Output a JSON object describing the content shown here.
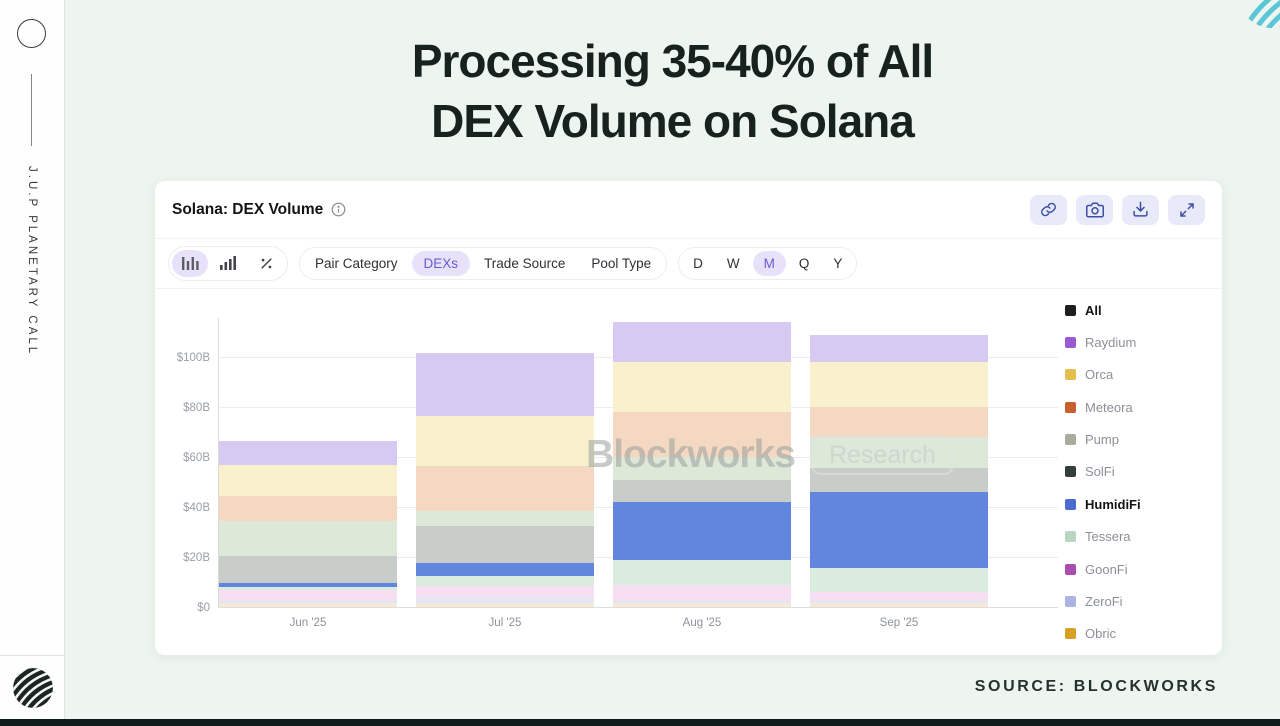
{
  "slide": {
    "title_line1": "Processing 35-40% of All",
    "title_line2": "DEX Volume on Solana",
    "sidebar_text": "J.U.P PLANETARY CALL",
    "source_label": "SOURCE: BLOCKWORKS"
  },
  "watermark": {
    "brand": "Blockworks",
    "suffix": "Research"
  },
  "card": {
    "title": "Solana: DEX Volume",
    "action_icons": [
      "link-icon",
      "camera-icon",
      "save-image-icon",
      "expand-icon"
    ],
    "filters": {
      "chart_types": [
        "bar-chart-icon",
        "ascending-bars-icon",
        "percent-icon"
      ],
      "active_chart_type": 0,
      "categories": [
        "Pair Category",
        "DEXs",
        "Trade Source",
        "Pool Type"
      ],
      "active_category": "DEXs",
      "periods": [
        "D",
        "W",
        "M",
        "Q",
        "Y"
      ],
      "active_period": "M"
    }
  },
  "chart_data": {
    "type": "bar",
    "stacked": true,
    "title": "Solana: DEX Volume",
    "unit": "USD billions",
    "categories": [
      "Jun '25",
      "Jul '25",
      "Aug '25",
      "Sep '25"
    ],
    "totals_usd_b": [
      66.5,
      101.5,
      114,
      109
    ],
    "ylim": [
      0,
      116
    ],
    "yticks": [
      0,
      20,
      40,
      60,
      80,
      100
    ],
    "ytick_labels": [
      "$0",
      "$20B",
      "$40B",
      "$60B",
      "$80B",
      "$100B"
    ],
    "grid": true,
    "legend_position": "right",
    "series_bottom_to_top": [
      {
        "name": "Obric",
        "fill": "#f6ead6",
        "values": [
          1.5,
          1.5,
          1.5,
          1.5
        ]
      },
      {
        "name": "ZeroFi",
        "fill": "#e4e6f6",
        "values": [
          1.5,
          2.5,
          1.5,
          1.5
        ]
      },
      {
        "name": "GoonFi",
        "fill": "#f6dff0",
        "values": [
          4,
          4.5,
          6,
          3
        ]
      },
      {
        "name": "Tessera",
        "fill": "#daecdf",
        "values": [
          1,
          4,
          10,
          9.5
        ]
      },
      {
        "name": "HumidiFi",
        "fill": "#6286dd",
        "values": [
          1.5,
          5,
          23,
          30.5
        ]
      },
      {
        "name": "SolFi",
        "fill": "#c9cdc9",
        "values": [
          11,
          15,
          9,
          9.5
        ]
      },
      {
        "name": "Pump",
        "fill": "#dde8d8",
        "values": [
          14,
          6,
          9,
          12.5
        ]
      },
      {
        "name": "Meteora",
        "fill": "#f5d8c2",
        "values": [
          10,
          18,
          18,
          12
        ]
      },
      {
        "name": "Orca",
        "fill": "#f9f0cd",
        "values": [
          12.5,
          20,
          20,
          18
        ]
      },
      {
        "name": "Raydium",
        "fill": "#d6c9f2",
        "values": [
          9.5,
          25,
          16,
          11
        ]
      }
    ],
    "legend": [
      {
        "label": "All",
        "color": "#1f1f1f",
        "bold": true
      },
      {
        "label": "Raydium",
        "color": "#9a5bd2",
        "bold": false
      },
      {
        "label": "Orca",
        "color": "#e3bf4d",
        "bold": false
      },
      {
        "label": "Meteora",
        "color": "#c75f2e",
        "bold": false
      },
      {
        "label": "Pump",
        "color": "#a9ac9a",
        "bold": false
      },
      {
        "label": "SolFi",
        "color": "#33403a",
        "bold": false
      },
      {
        "label": "HumidiFi",
        "color": "#4c6bd1",
        "bold": true
      },
      {
        "label": "Tessera",
        "color": "#b9d6c0",
        "bold": false
      },
      {
        "label": "GoonFi",
        "color": "#aa4cb0",
        "bold": false
      },
      {
        "label": "ZeroFi",
        "color": "#aab3e2",
        "bold": false
      },
      {
        "label": "Obric",
        "color": "#d7a125",
        "bold": false
      }
    ]
  }
}
